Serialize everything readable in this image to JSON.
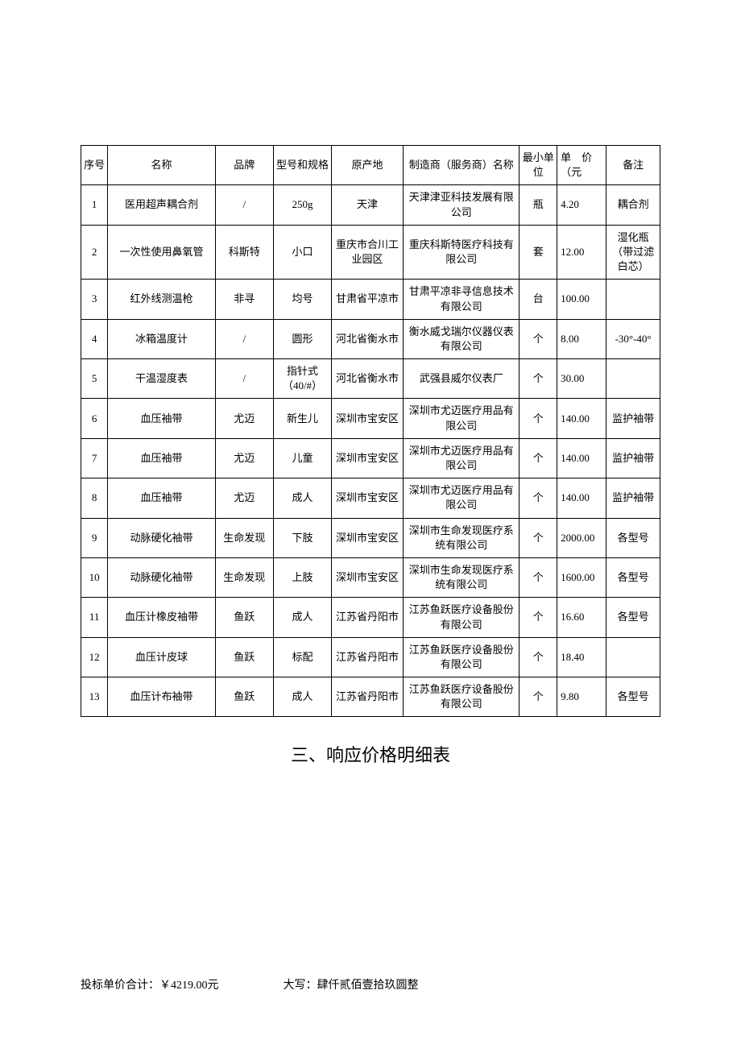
{
  "table": {
    "columns": [
      {
        "key": "seq",
        "label": "序号",
        "class": "col-seq"
      },
      {
        "key": "name",
        "label": "名称",
        "class": "col-name"
      },
      {
        "key": "brand",
        "label": "品牌",
        "class": "col-brand"
      },
      {
        "key": "spec",
        "label": "型号和规格",
        "class": "col-spec"
      },
      {
        "key": "origin",
        "label": "原产地",
        "class": "col-origin"
      },
      {
        "key": "mfr",
        "label": "制造商（服务商）名称",
        "class": "col-mfr"
      },
      {
        "key": "unit",
        "label": "最小单位",
        "class": "col-unit"
      },
      {
        "key": "price",
        "label": "单　价（元",
        "class": "col-price"
      },
      {
        "key": "note",
        "label": "备注",
        "class": "col-note"
      }
    ],
    "rows": [
      {
        "seq": "1",
        "name": "医用超声耦合剂",
        "brand": "/",
        "spec": "250g",
        "origin": "天津",
        "mfr": "天津津亚科技发展有限公司",
        "unit": "瓶",
        "price": "4.20",
        "note": "耦合剂"
      },
      {
        "seq": "2",
        "name": "一次性使用鼻氧管",
        "brand": "科斯特",
        "spec": "小口",
        "origin": "重庆市合川工业园区",
        "mfr": "重庆科斯特医疗科技有限公司",
        "unit": "套",
        "price": "12.00",
        "note": "湿化瓶（带过滤白芯）"
      },
      {
        "seq": "3",
        "name": "红外线测温枪",
        "brand": "非寻",
        "spec": "均号",
        "origin": "甘肃省平凉市",
        "mfr": "甘肃平凉非寻信息技术有限公司",
        "unit": "台",
        "price": "100.00",
        "note": ""
      },
      {
        "seq": "4",
        "name": "冰箱温度计",
        "brand": "/",
        "spec": "圆形",
        "origin": "河北省衡水市",
        "mfr": "衡水威戈瑞尔仪器仪表有限公司",
        "unit": "个",
        "price": "8.00",
        "note": "-30°-40°"
      },
      {
        "seq": "5",
        "name": "干温湿度表",
        "brand": "/",
        "spec": "指针式（40/#）",
        "origin": "河北省衡水市",
        "mfr": "武强县威尔仪表厂",
        "unit": "个",
        "price": "30.00",
        "note": ""
      },
      {
        "seq": "6",
        "name": "血压袖带",
        "brand": "尤迈",
        "spec": "新生儿",
        "origin": "深圳市宝安区",
        "mfr": "深圳市尤迈医疗用品有限公司",
        "unit": "个",
        "price": "140.00",
        "note": "监护袖带"
      },
      {
        "seq": "7",
        "name": "血压袖带",
        "brand": "尤迈",
        "spec": "儿童",
        "origin": "深圳市宝安区",
        "mfr": "深圳市尤迈医疗用品有限公司",
        "unit": "个",
        "price": "140.00",
        "note": "监护袖带"
      },
      {
        "seq": "8",
        "name": "血压袖带",
        "brand": "尤迈",
        "spec": "成人",
        "origin": "深圳市宝安区",
        "mfr": "深圳市尤迈医疗用品有限公司",
        "unit": "个",
        "price": "140.00",
        "note": "监护袖带"
      },
      {
        "seq": "9",
        "name": "动脉硬化袖带",
        "brand": "生命发现",
        "spec": "下肢",
        "origin": "深圳市宝安区",
        "mfr": "深圳市生命发现医疗系统有限公司",
        "unit": "个",
        "price": "2000.00",
        "note": "各型号"
      },
      {
        "seq": "10",
        "name": "动脉硬化袖带",
        "brand": "生命发现",
        "spec": "上肢",
        "origin": "深圳市宝安区",
        "mfr": "深圳市生命发现医疗系统有限公司",
        "unit": "个",
        "price": "1600.00",
        "note": "各型号"
      },
      {
        "seq": "11",
        "name": "血压计橡皮袖带",
        "brand": "鱼跃",
        "spec": "成人",
        "origin": "江苏省丹阳市",
        "mfr": "江苏鱼跃医疗设备股份有限公司",
        "unit": "个",
        "price": "16.60",
        "note": "各型号"
      },
      {
        "seq": "12",
        "name": "血压计皮球",
        "brand": "鱼跃",
        "spec": "标配",
        "origin": "江苏省丹阳市",
        "mfr": "江苏鱼跃医疗设备股份有限公司",
        "unit": "个",
        "price": "18.40",
        "note": ""
      },
      {
        "seq": "13",
        "name": "血压计布袖带",
        "brand": "鱼跃",
        "spec": "成人",
        "origin": "江苏省丹阳市",
        "mfr": "江苏鱼跃医疗设备股份有限公司",
        "unit": "个",
        "price": "9.80",
        "note": "各型号"
      }
    ],
    "border_color": "#000000",
    "font_size": 13,
    "background_color": "#ffffff"
  },
  "section_heading": "三、响应价格明细表",
  "footer": {
    "total_label": "投标单价合计：￥4219.00元",
    "chinese_amount": "大写：肆仟贰佰壹拾玖圆整"
  }
}
